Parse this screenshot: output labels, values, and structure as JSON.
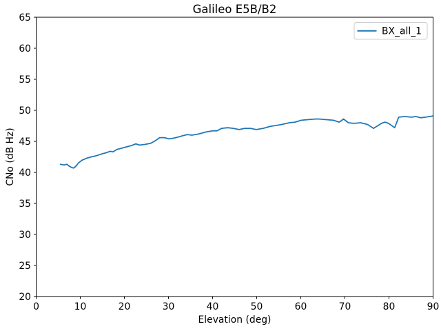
{
  "window": {
    "background": "#ffffff"
  },
  "chart_data": {
    "type": "line",
    "title": "Galileo E5B/B2",
    "xlabel": "Elevation (deg)",
    "ylabel": "CNo (dB Hz)",
    "xlim": [
      0,
      90
    ],
    "ylim": [
      20,
      65
    ],
    "xticks": [
      0,
      10,
      20,
      30,
      40,
      50,
      60,
      70,
      80,
      90
    ],
    "yticks": [
      20,
      25,
      30,
      35,
      40,
      45,
      50,
      55,
      60,
      65
    ],
    "grid": false,
    "legend": {
      "position": "upper right",
      "entries": [
        "BX_all_1"
      ]
    },
    "axis_color": "#000000",
    "series": [
      {
        "name": "BX_all_1",
        "color": "#1f77b4",
        "points": [
          [
            5.5,
            41.3
          ],
          [
            6.3,
            41.2
          ],
          [
            7.0,
            41.3
          ],
          [
            7.5,
            41.0
          ],
          [
            8.0,
            40.8
          ],
          [
            8.5,
            40.7
          ],
          [
            9.0,
            41.0
          ],
          [
            9.7,
            41.6
          ],
          [
            10.5,
            42.0
          ],
          [
            11.5,
            42.3
          ],
          [
            12.5,
            42.5
          ],
          [
            13.7,
            42.7
          ],
          [
            15.0,
            43.0
          ],
          [
            16.0,
            43.2
          ],
          [
            16.8,
            43.4
          ],
          [
            17.4,
            43.3
          ],
          [
            18.3,
            43.7
          ],
          [
            19.4,
            43.9
          ],
          [
            20.4,
            44.1
          ],
          [
            21.5,
            44.3
          ],
          [
            22.6,
            44.6
          ],
          [
            23.4,
            44.4
          ],
          [
            24.6,
            44.5
          ],
          [
            26.0,
            44.7
          ],
          [
            27.0,
            45.1
          ],
          [
            28.0,
            45.6
          ],
          [
            29.1,
            45.6
          ],
          [
            30.1,
            45.4
          ],
          [
            31.1,
            45.5
          ],
          [
            32.2,
            45.7
          ],
          [
            33.2,
            45.9
          ],
          [
            34.3,
            46.1
          ],
          [
            35.3,
            46.0
          ],
          [
            36.9,
            46.2
          ],
          [
            38.4,
            46.5
          ],
          [
            40.0,
            46.7
          ],
          [
            41.0,
            46.7
          ],
          [
            42.1,
            47.1
          ],
          [
            43.4,
            47.2
          ],
          [
            44.7,
            47.1
          ],
          [
            46.0,
            46.9
          ],
          [
            47.3,
            47.1
          ],
          [
            48.6,
            47.1
          ],
          [
            49.9,
            46.9
          ],
          [
            51.5,
            47.1
          ],
          [
            53.0,
            47.4
          ],
          [
            55.5,
            47.7
          ],
          [
            57.4,
            48.0
          ],
          [
            58.7,
            48.1
          ],
          [
            60.1,
            48.4
          ],
          [
            61.6,
            48.5
          ],
          [
            63.2,
            48.6
          ],
          [
            64.2,
            48.6
          ],
          [
            65.8,
            48.5
          ],
          [
            67.4,
            48.4
          ],
          [
            68.7,
            48.1
          ],
          [
            69.7,
            48.6
          ],
          [
            70.8,
            48.0
          ],
          [
            72.0,
            47.9
          ],
          [
            73.6,
            48.0
          ],
          [
            74.7,
            47.8
          ],
          [
            75.2,
            47.7
          ],
          [
            76.5,
            47.1
          ],
          [
            78.3,
            47.9
          ],
          [
            79.1,
            48.1
          ],
          [
            79.9,
            47.9
          ],
          [
            81.3,
            47.2
          ],
          [
            82.2,
            48.9
          ],
          [
            83.6,
            49.0
          ],
          [
            85.1,
            48.9
          ],
          [
            86.1,
            49.0
          ],
          [
            87.2,
            48.8
          ],
          [
            88.3,
            48.9
          ],
          [
            89.2,
            49.0
          ],
          [
            90.0,
            49.1
          ]
        ]
      }
    ]
  }
}
